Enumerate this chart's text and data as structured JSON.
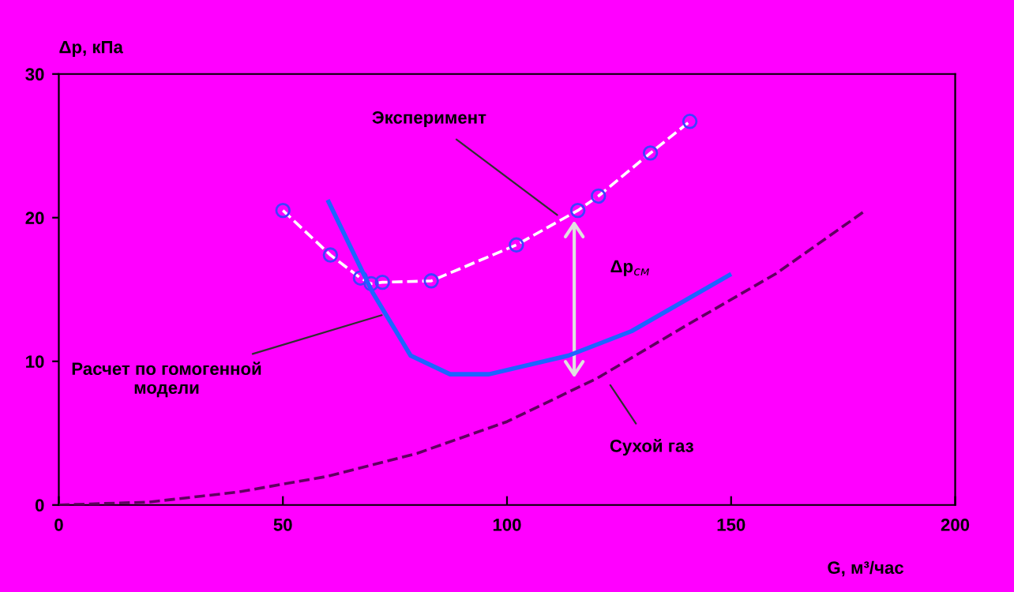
{
  "chart_data": {
    "type": "line",
    "xlabel": "G, м³/час",
    "ylabel": "Δp, кПа",
    "xlim": [
      0,
      200
    ],
    "xticks": [
      0,
      50,
      100,
      150,
      200
    ],
    "ylim": [
      0,
      30
    ],
    "yticks": [
      0,
      10,
      20,
      30
    ],
    "grid": false,
    "legend": false,
    "series": [
      {
        "color": "#ffffff",
        "marker": "circle",
        "line_style": "dashed",
        "x": [
          50,
          60.6,
          67.3,
          69.7,
          72.2,
          83.1,
          102.1,
          115.8,
          120.4,
          132,
          140.8
        ],
        "values": [
          20.5,
          17.4,
          15.8,
          15.4,
          15.5,
          15.6,
          18.1,
          20.5,
          21.5,
          24.5,
          26.7
        ]
      },
      {
        "color": "#1e64ff",
        "marker": "none",
        "line_style": "solid",
        "x": [
          60.2,
          70,
          78.5,
          87.3,
          96,
          113.7,
          127.8,
          149.6
        ],
        "values": [
          21.1,
          14.8,
          10.4,
          9.1,
          9.1,
          10.4,
          12.1,
          16.0
        ]
      },
      {
        "color": "#600060",
        "marker": "none",
        "line_style": "dashed",
        "x": [
          0,
          20,
          40,
          60,
          80,
          100,
          120,
          140,
          160,
          180
        ],
        "values": [
          0,
          0.2,
          0.9,
          2.0,
          3.6,
          5.8,
          8.8,
          12.5,
          16.1,
          20.5
        ]
      }
    ],
    "annotations": [
      {
        "text": "Эксперимент",
        "x": 112,
        "y": 20.0
      },
      {
        "text": "Расчет по гомогенной\nмодели",
        "x": 73,
        "y": 13.3
      },
      {
        "text": "Сухой газ",
        "x": 122.5,
        "y": 8.6
      },
      "Δp$_{см}$"
    ]
  }
}
